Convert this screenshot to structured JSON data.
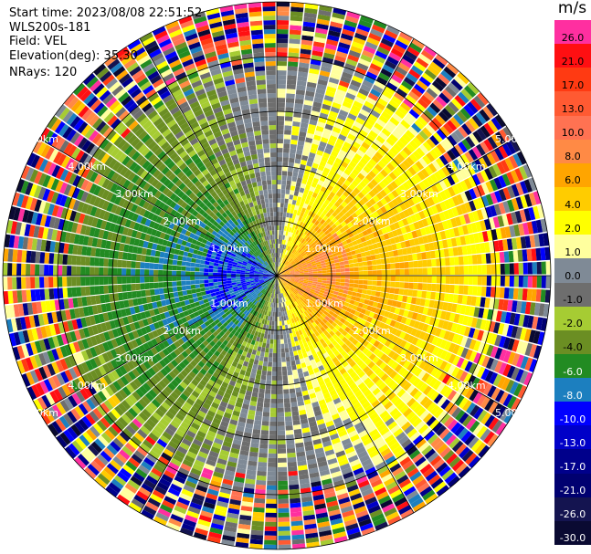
{
  "header": {
    "start_time": "Start time: 2023/08/08 22:51:52",
    "instrument": "WLS200s-181",
    "field": "Field: VEL",
    "elevation": "Elevation(deg): 35.30",
    "nrays": "NRays: 120"
  },
  "colorbar": {
    "unit": "m/s",
    "levels": [
      {
        "label": "26.0",
        "color": "#ff2fa0"
      },
      {
        "label": "21.0",
        "color": "#ff0f12"
      },
      {
        "label": "17.0",
        "color": "#ff3a12"
      },
      {
        "label": "13.0",
        "color": "#ff5a32"
      },
      {
        "label": "10.0",
        "color": "#ff7252"
      },
      {
        "label": "8.0",
        "color": "#ff8a45"
      },
      {
        "label": "6.0",
        "color": "#ffa500"
      },
      {
        "label": "4.0",
        "color": "#ffcc00"
      },
      {
        "label": "2.0",
        "color": "#ffff00"
      },
      {
        "label": "1.0",
        "color": "#ffff9e"
      },
      {
        "label": "0.0",
        "color": "#7f8a96"
      },
      {
        "label": "-1.0",
        "color": "#6e6e6e"
      },
      {
        "label": "-2.0",
        "color": "#a6cc33"
      },
      {
        "label": "-4.0",
        "color": "#6b8e23"
      },
      {
        "label": "-6.0",
        "color": "#228b22"
      },
      {
        "label": "-8.0",
        "color": "#1c7fbf"
      },
      {
        "label": "-10.0",
        "color": "#0000ff"
      },
      {
        "label": "-13.0",
        "color": "#0000c8"
      },
      {
        "label": "-17.0",
        "color": "#00008b"
      },
      {
        "label": "-21.0",
        "color": "#000070"
      },
      {
        "label": "-26.0",
        "color": "#141450"
      },
      {
        "label": "-30.0",
        "color": "#0a0a32"
      }
    ]
  },
  "chart_data": {
    "type": "heatmap",
    "projection": "polar PPI",
    "field": "VEL",
    "units": "m/s",
    "n_rays": 120,
    "n_gates": 60,
    "range_max_km": 5.0,
    "range_rings_km": [
      1.0,
      2.0,
      3.0,
      4.0,
      5.0
    ],
    "ring_labels": [
      "1.00km",
      "2.00km",
      "3.00km",
      "4.00km",
      "5.00km"
    ],
    "azimuth_spokes_deg": [
      0,
      30,
      60,
      90,
      120,
      150,
      180,
      210,
      240,
      270,
      300,
      330
    ],
    "pattern": "positive (receding) velocities 0 to 8 m/s east, negative (approaching) velocities -1 to -8 m/s west, noisy values beyond ~3.5 km"
  }
}
